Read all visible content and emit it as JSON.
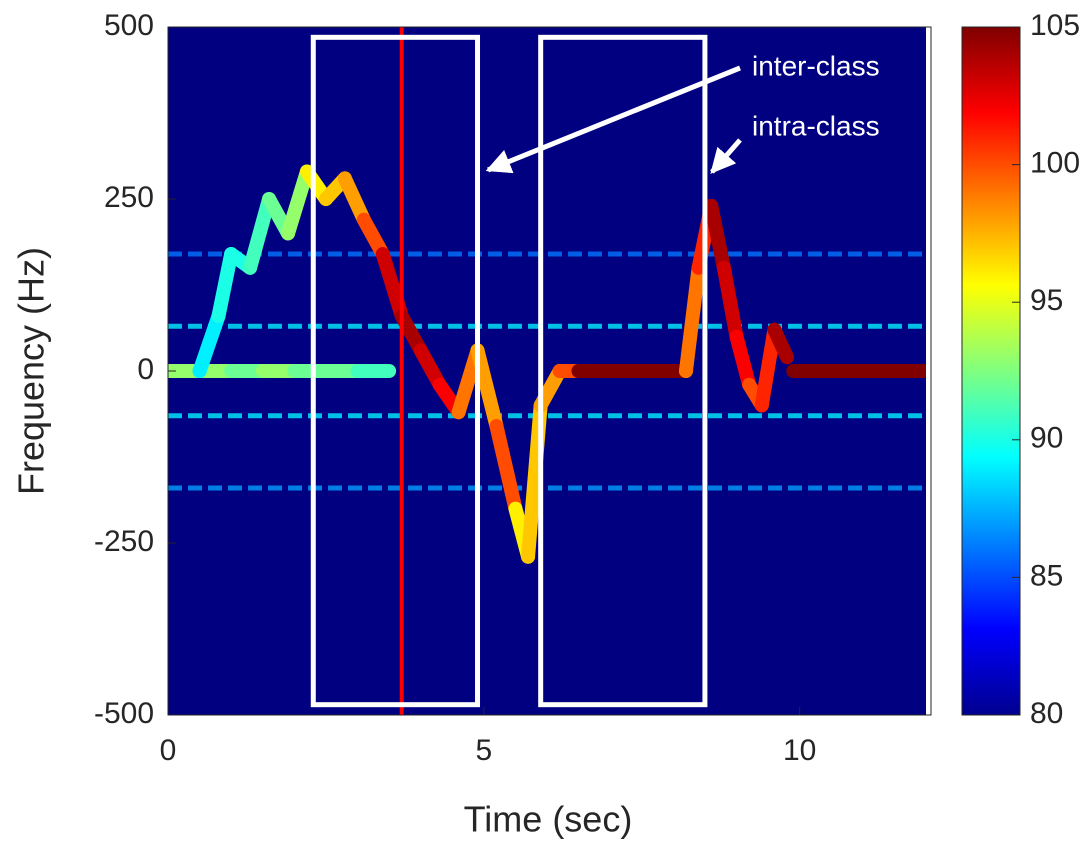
{
  "chart_data": {
    "type": "spectrogram",
    "xlabel": "Time (sec)",
    "ylabel": "Frequency (Hz)",
    "xlim": [
      0,
      12
    ],
    "ylim": [
      -500,
      500
    ],
    "xticks": [
      0,
      5,
      10
    ],
    "yticks": [
      500,
      250,
      0,
      -250,
      -500
    ],
    "colormap": "jet",
    "clim": [
      80,
      105
    ],
    "cticks": [
      80,
      85,
      90,
      95,
      100,
      105
    ],
    "bands": {
      "freq": [
        65,
        -65,
        170,
        -170
      ],
      "level": [
        89,
        89,
        86,
        87
      ]
    },
    "traces": [
      {
        "x": [
          0,
          0.5,
          1,
          1.5,
          2,
          2.5,
          3,
          3.5
        ],
        "y": [
          0,
          0,
          0,
          0,
          0,
          0,
          0,
          0
        ],
        "level": [
          93,
          93,
          93,
          92,
          93,
          92,
          92,
          91
        ]
      },
      {
        "x": [
          0.5,
          0.8,
          1.0,
          1.3,
          1.6,
          1.9,
          2.2,
          2.5,
          2.8,
          3.1,
          3.4,
          3.7,
          4.0,
          4.3,
          4.6,
          4.9,
          5.2,
          5.5,
          5.7,
          5.9,
          6.2,
          6.5
        ],
        "y": [
          0,
          80,
          170,
          150,
          250,
          200,
          290,
          250,
          280,
          220,
          170,
          80,
          30,
          -20,
          -60,
          30,
          -80,
          -200,
          -270,
          -50,
          0,
          0
        ],
        "level": [
          88,
          89,
          90,
          90,
          91,
          92,
          93,
          96,
          97,
          98,
          100,
          103,
          104,
          103,
          102,
          99,
          98,
          100,
          96,
          97,
          98,
          100
        ]
      },
      {
        "x": [
          6.5,
          7,
          7.5,
          8,
          8.2
        ],
        "y": [
          0,
          0,
          0,
          0,
          0
        ],
        "level": [
          105,
          105,
          105,
          105,
          105
        ]
      },
      {
        "x": [
          8.2,
          8.4,
          8.6,
          8.8,
          9.0,
          9.2,
          9.4,
          9.6,
          9.8
        ],
        "y": [
          0,
          150,
          240,
          150,
          50,
          -20,
          -50,
          60,
          20
        ],
        "level": [
          98,
          99,
          101,
          104,
          103,
          102,
          100,
          101,
          104
        ]
      },
      {
        "x": [
          9.9,
          10.5,
          11,
          11.5,
          12
        ],
        "y": [
          0,
          0,
          0,
          0,
          0
        ],
        "level": [
          105,
          105,
          105,
          105,
          105
        ]
      }
    ],
    "boxes": [
      {
        "x": [
          2.3,
          4.9
        ],
        "y": [
          -485,
          485
        ]
      },
      {
        "x": [
          5.9,
          8.5
        ],
        "y": [
          -485,
          485
        ]
      }
    ],
    "cursor_x": 3.7,
    "annotations": [
      {
        "text": "inter-class"
      },
      {
        "text": "intra-class"
      }
    ]
  }
}
